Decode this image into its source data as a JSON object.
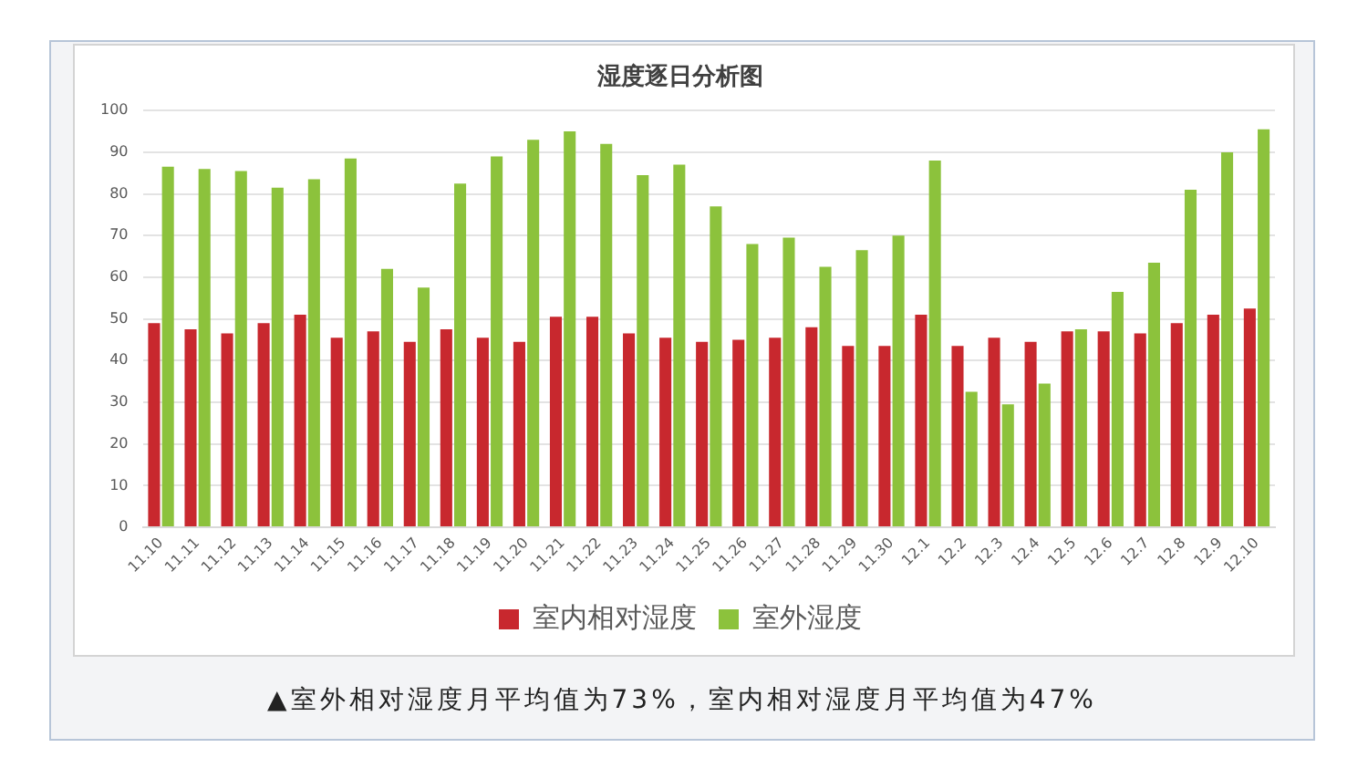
{
  "chart_data": {
    "type": "bar",
    "title": "湿度逐日分析图",
    "categories": [
      "11.10",
      "11.11",
      "11.12",
      "11.13",
      "11.14",
      "11.15",
      "11.16",
      "11.17",
      "11.18",
      "11.19",
      "11.20",
      "11.21",
      "11.22",
      "11.23",
      "11.24",
      "11.25",
      "11.26",
      "11.27",
      "11.28",
      "11.29",
      "11.30",
      "12.1",
      "12.2",
      "12.3",
      "12.4",
      "12.5",
      "12.6",
      "12.7",
      "12.8",
      "12.9",
      "12.10"
    ],
    "series": [
      {
        "name": "室内相对湿度",
        "color": "#c8282e",
        "values": [
          49,
          47.5,
          46.5,
          49,
          51,
          45.5,
          47,
          44.5,
          47.5,
          45.5,
          44.5,
          50.5,
          50.5,
          46.5,
          45.5,
          44.5,
          45,
          45.5,
          48,
          43.5,
          43.5,
          51,
          43.5,
          45.5,
          44.5,
          47,
          47,
          46.5,
          49,
          51,
          52.5
        ]
      },
      {
        "name": "室外湿度",
        "color": "#8cc23c",
        "values": [
          86.5,
          86,
          85.5,
          81.5,
          83.5,
          88.5,
          62,
          57.5,
          82.5,
          89,
          93,
          95,
          92,
          84.5,
          87,
          77,
          68,
          69.5,
          62.5,
          66.5,
          70,
          88,
          32.5,
          29.5,
          34.5,
          47.5,
          56.5,
          63.5,
          81,
          90,
          95.5
        ]
      }
    ],
    "ylim": [
      0,
      100
    ],
    "yticks": [
      0,
      10,
      20,
      30,
      40,
      50,
      60,
      70,
      80,
      90,
      100
    ],
    "grid": "y",
    "legend": "bottom",
    "annotations": [
      "▲室外相对湿度月平均值为73%，室内相对湿度月平均值为47%"
    ]
  }
}
